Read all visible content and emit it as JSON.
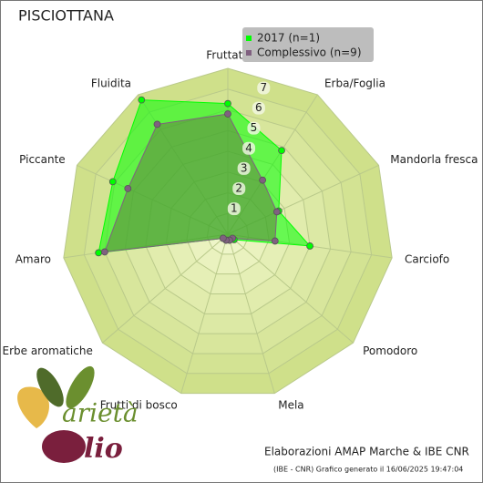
{
  "chart_data": {
    "type": "radar",
    "title": "PISCIOTTANA",
    "categories": [
      "Fruttato",
      "Erba/Foglia",
      "Mandorla fresca",
      "Carciofo",
      "Pomodoro",
      "Mela",
      "Frutti di bosco",
      "Erbe aromatiche",
      "Amaro",
      "Piccante",
      "Fluidita"
    ],
    "series": [
      {
        "name": "2017 (n=1)",
        "color": "#00ff00",
        "values": [
          6.3,
          4.8,
          2.7,
          4.0,
          0.4,
          0.3,
          0.3,
          0.3,
          6.3,
          6.1,
          7.7
        ]
      },
      {
        "name": "Complessivo (n=9)",
        "color": "#806080",
        "values": [
          5.8,
          3.1,
          2.6,
          2.3,
          0.3,
          0.3,
          0.3,
          0.3,
          6.0,
          5.3,
          6.3
        ]
      }
    ],
    "ylim": [
      0,
      8
    ],
    "yticks": [
      1,
      2,
      3,
      4,
      5,
      6,
      7
    ],
    "legend": "top-right",
    "footer": "Elaborazioni AMAP Marche & IBE CNR",
    "footnote": "(IBE - CNR) Grafico generato il 16/06/2025 19:47:04",
    "logo": {
      "line1": "arietà",
      "line2": "lio"
    }
  }
}
